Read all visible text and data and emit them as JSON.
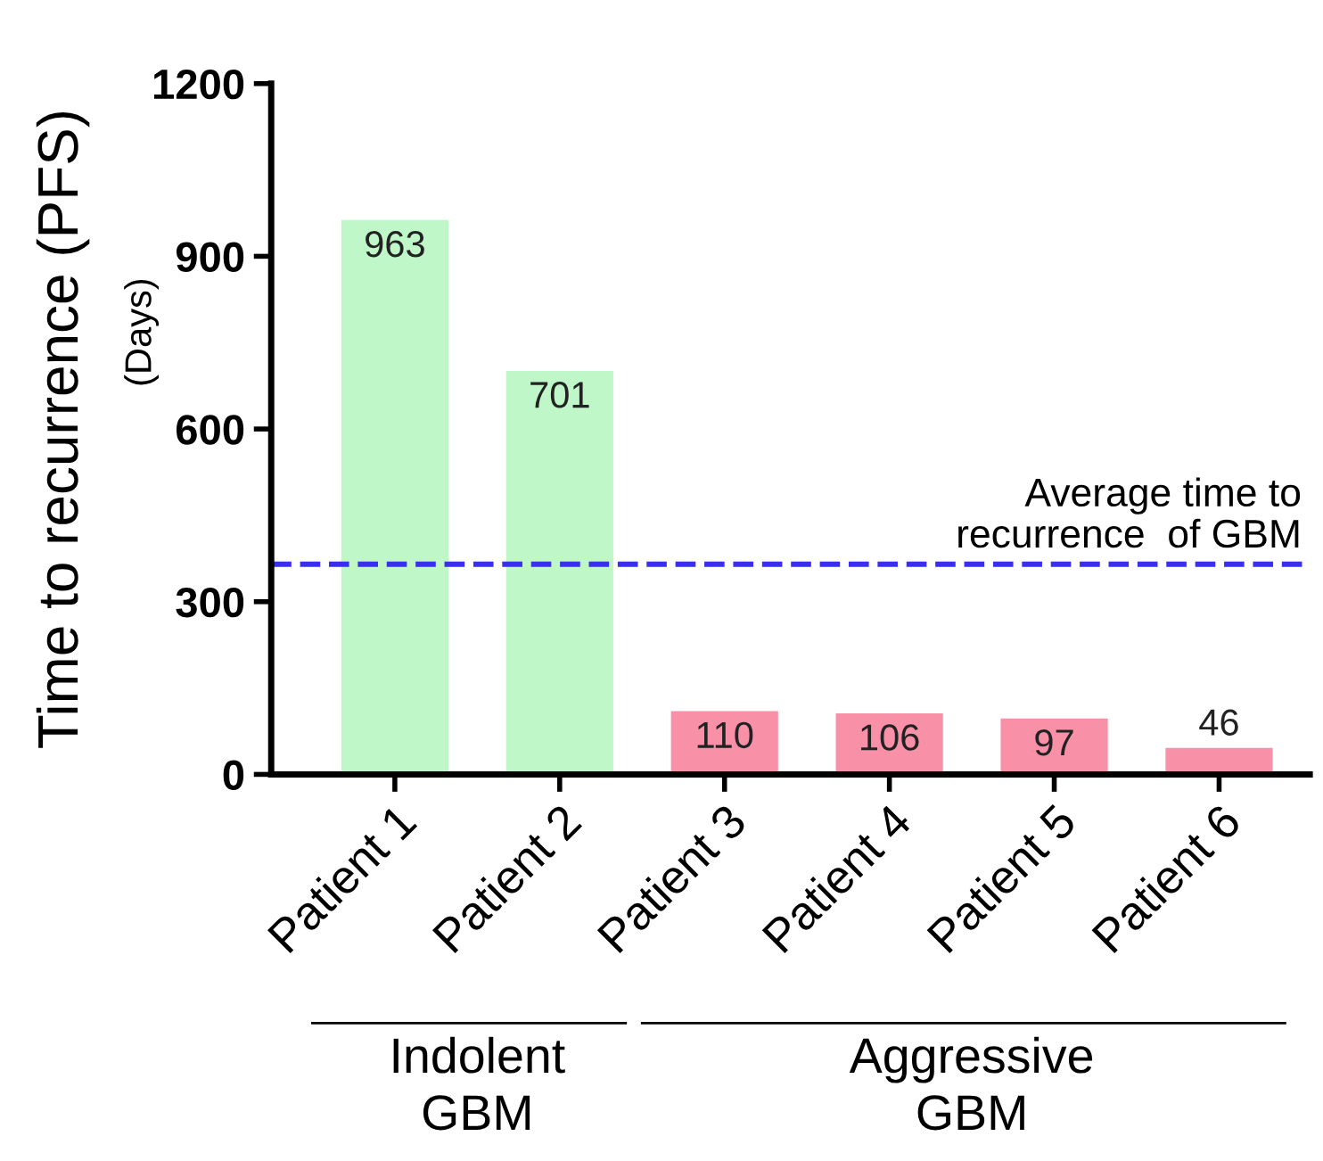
{
  "chart_data": {
    "type": "bar",
    "ylabel": "Time to recurrence (PFS)",
    "categories": [
      "Patient 1",
      "Patient 2",
      "Patient 3",
      "Patient 4",
      "Patient 5",
      "Patient 6"
    ],
    "values": [
      963,
      701,
      110,
      106,
      97,
      46
    ],
    "colors": [
      "#c0f7c8",
      "#c0f7c8",
      "#f890a8",
      "#f890a8",
      "#f890a8",
      "#f890a8"
    ],
    "data_labels": true,
    "ylim": [
      0,
      1200
    ],
    "yticks": [
      0,
      300,
      600,
      900,
      1200
    ],
    "ref_lines": [
      {
        "axis": "y",
        "value": 365,
        "label": "Average time to\nrecurrence  of GBM",
        "color": "#3a2ff0",
        "line_style": "dashed"
      }
    ],
    "annotations": [
      "(Days)",
      "Indolent\nGBM",
      "Aggressive\nGBM"
    ],
    "grid": false
  }
}
